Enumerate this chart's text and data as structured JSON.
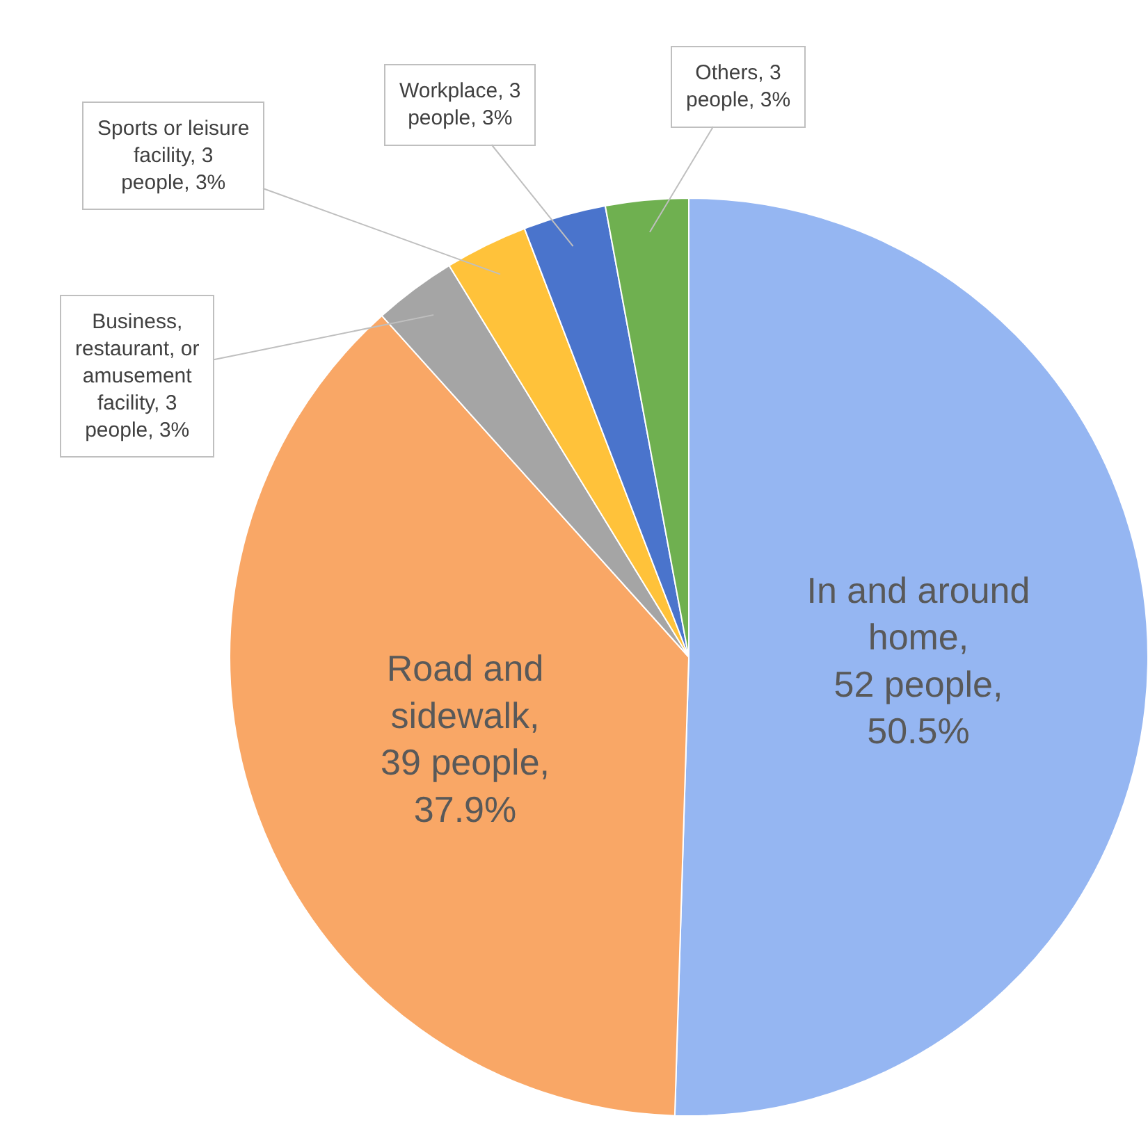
{
  "chart_data": {
    "type": "pie",
    "categories": [
      "In and around home",
      "Road and sidewalk",
      "Business, restaurant, or amusement facility",
      "Sports or leisure facility",
      "Workplace",
      "Others"
    ],
    "values": [
      52,
      39,
      3,
      3,
      3,
      3
    ],
    "value_labels": [
      ", 52 people, 50.5%",
      ", 39 people, 37.9%",
      ", 3 people, 3%",
      ", 3 people, 3%",
      ", 3 people, 3%",
      ", 3 people, 3%"
    ],
    "colors": [
      "#95b6f2",
      "#f9a766",
      "#a5a5a5",
      "#ffc23a",
      "#4a74cc",
      "#6fb050"
    ]
  }
}
